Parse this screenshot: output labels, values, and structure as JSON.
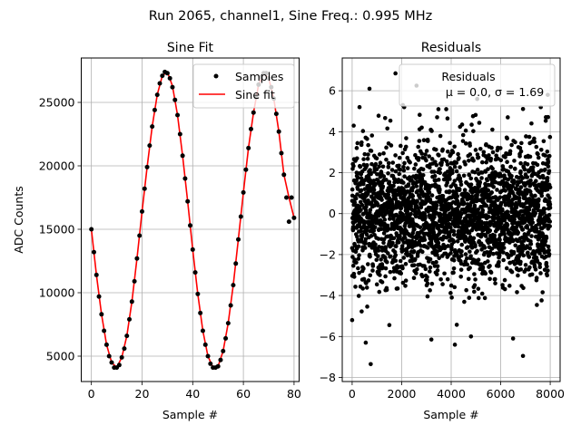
{
  "figure": {
    "suptitle": "Run 2065, channel1, Sine Freq.: 0.995 MHz"
  },
  "chart_data": [
    {
      "type": "scatter",
      "title": "Sine Fit",
      "xlabel": "Sample #",
      "ylabel": "ADC Counts",
      "xlim": [
        -4,
        82
      ],
      "ylim": [
        3000,
        28500
      ],
      "xticks": [
        0,
        20,
        40,
        60,
        80
      ],
      "yticks": [
        5000,
        10000,
        15000,
        20000,
        25000
      ],
      "grid": true,
      "legend_position": "top-right",
      "legend": [
        "Samples",
        "Sine fit"
      ],
      "fit_model": {
        "amplitude": 11600,
        "offset": 15800,
        "period_samples": 40.2,
        "phase_rad": -0.07
      },
      "series": [
        {
          "name": "Samples",
          "style": "points",
          "color": "#000000",
          "x": [
            0,
            1,
            2,
            3,
            4,
            5,
            6,
            7,
            8,
            9,
            10,
            11,
            12,
            13,
            14,
            15,
            16,
            17,
            18,
            19,
            20,
            21,
            22,
            23,
            24,
            25,
            26,
            27,
            28,
            29,
            30,
            31,
            32,
            33,
            34,
            35,
            36,
            37,
            38,
            39,
            40,
            41,
            42,
            43,
            44,
            45,
            46,
            47,
            48,
            49,
            50,
            51,
            52,
            53,
            54,
            55,
            56,
            57,
            58,
            59,
            60,
            61,
            62,
            63,
            64,
            65,
            66,
            67,
            68,
            69,
            70,
            71,
            72,
            73,
            74,
            75,
            76,
            77,
            78,
            79,
            80
          ],
          "values": [
            15000,
            13200,
            11400,
            9700,
            8300,
            7000,
            5900,
            5000,
            4500,
            4100,
            4100,
            4300,
            4900,
            5600,
            6600,
            7900,
            9300,
            10900,
            12700,
            14500,
            16400,
            18200,
            19900,
            21600,
            23100,
            24400,
            25600,
            26500,
            27100,
            27400,
            27300,
            26900,
            26200,
            25200,
            24000,
            22500,
            20800,
            19000,
            17200,
            15300,
            13400,
            11600,
            9900,
            8400,
            7000,
            5900,
            5000,
            4400,
            4100,
            4100,
            4200,
            4700,
            5400,
            6400,
            7600,
            9000,
            10600,
            12300,
            14200,
            16000,
            17900,
            19700,
            21400,
            22900,
            24200,
            25400,
            26400,
            27000,
            27300,
            27300,
            26900,
            26200,
            25300,
            24100,
            22700,
            21000,
            19300,
            17500,
            15600,
            17500,
            15900
          ]
        },
        {
          "name": "Sine fit",
          "style": "line",
          "color": "#ff0000",
          "x": [
            0,
            2,
            4,
            6,
            8,
            10,
            12,
            14,
            16,
            18,
            20,
            22,
            24,
            26,
            28,
            30,
            32,
            34,
            36,
            38,
            40,
            42,
            44,
            46,
            48,
            50,
            52,
            54,
            56,
            58,
            60,
            62,
            64,
            66,
            68,
            70,
            72,
            74,
            76,
            78,
            80
          ],
          "values": [
            15000,
            11400,
            8300,
            5900,
            4500,
            4100,
            4900,
            6600,
            9300,
            12700,
            16400,
            19900,
            23100,
            25600,
            27100,
            27400,
            26300,
            24000,
            20800,
            17200,
            13400,
            9900,
            7000,
            5000,
            4100,
            4200,
            5400,
            7600,
            10600,
            14200,
            17900,
            21400,
            24200,
            26400,
            27300,
            26900,
            25300,
            22700,
            19300,
            17500,
            15900
          ]
        }
      ]
    },
    {
      "type": "scatter",
      "title": "Residuals",
      "xlabel": "Sample #",
      "xlim": [
        -400,
        8400
      ],
      "ylim": [
        -8.2,
        7.6
      ],
      "xticks": [
        0,
        2000,
        4000,
        6000,
        8000
      ],
      "yticks": [
        -8,
        -6,
        -4,
        -2,
        0,
        2,
        4,
        6
      ],
      "grid": true,
      "legend_position": "top-right",
      "legend_label": "Residuals",
      "legend_stats": "μ = 0.0, σ = 1.69",
      "series": [
        {
          "name": "Residuals",
          "style": "points",
          "color": "#000000",
          "n_points": 8000,
          "mean": 0.0,
          "std": 1.69,
          "min": -7.35,
          "max": 6.9,
          "outliers": [
            {
              "x": 750,
              "y": -7.35
            },
            {
              "x": 6900,
              "y": -6.95
            },
            {
              "x": 1750,
              "y": 6.85
            },
            {
              "x": 2600,
              "y": 6.25
            },
            {
              "x": 700,
              "y": 6.1
            },
            {
              "x": 550,
              "y": -6.3
            },
            {
              "x": 3200,
              "y": -6.15
            },
            {
              "x": 4150,
              "y": -6.4
            },
            {
              "x": 6500,
              "y": -6.1
            },
            {
              "x": 4800,
              "y": -6.0
            },
            {
              "x": 0,
              "y": -5.2
            },
            {
              "x": 7900,
              "y": 5.8
            },
            {
              "x": 2050,
              "y": 5.3
            },
            {
              "x": 5050,
              "y": 5.6
            },
            {
              "x": 3800,
              "y": 5.1
            }
          ]
        }
      ]
    }
  ]
}
